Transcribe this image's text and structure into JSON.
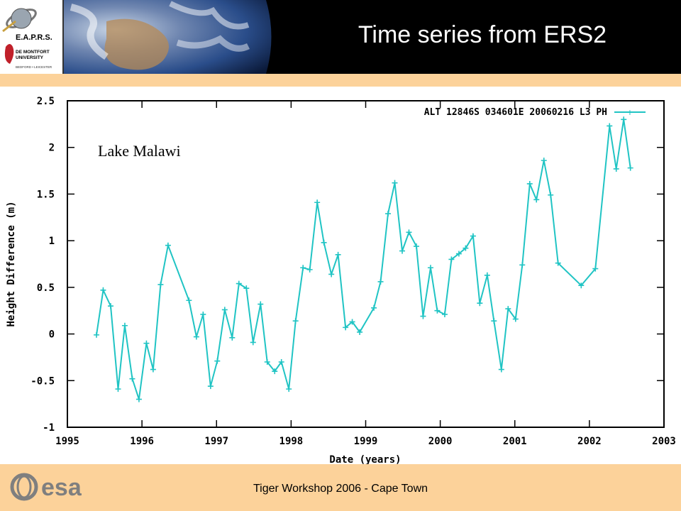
{
  "header": {
    "title": "Time series from ERS2",
    "logo_text": "E.A.P.R.S.",
    "university_text": "DE MONTFORT UNIVERSITY",
    "university_sub": "BEDFORD • LEICESTER"
  },
  "footer": {
    "text": "Tiger Workshop 2006 - Cape Town",
    "esa_logo_text": "esa"
  },
  "colors": {
    "header_bg": "#000000",
    "band": "#fcd29a",
    "series": "#20c4c4",
    "axis": "#000000"
  },
  "chart_data": {
    "type": "line",
    "annotation": "Lake Malawi",
    "xlabel": "Date (years)",
    "ylabel": "Height Difference (m)",
    "xlim": [
      1995,
      2003
    ],
    "ylim": [
      -1,
      2.5
    ],
    "x_ticks": [
      "1995",
      "1996",
      "1997",
      "1998",
      "1999",
      "2000",
      "2001",
      "2002",
      "2003"
    ],
    "y_ticks": [
      "2.5",
      "2",
      "1.5",
      "1",
      "0.5",
      "0",
      "-0.5",
      "-1"
    ],
    "grid": false,
    "legend_position": "top-right",
    "series": [
      {
        "name": "ALT 12846S 034601E 20060216 L3 PH",
        "x": [
          1995.39,
          1995.48,
          1995.58,
          1995.68,
          1995.77,
          1995.87,
          1995.96,
          1996.06,
          1996.15,
          1996.25,
          1996.35,
          1996.63,
          1996.73,
          1996.82,
          1996.92,
          1997.01,
          1997.11,
          1997.21,
          1997.3,
          1997.4,
          1997.49,
          1997.59,
          1997.68,
          1997.78,
          1997.87,
          1997.97,
          1998.06,
          1998.16,
          1998.25,
          1998.35,
          1998.44,
          1998.54,
          1998.63,
          1998.73,
          1998.82,
          1998.92,
          1999.11,
          1999.2,
          1999.3,
          1999.39,
          1999.49,
          1999.58,
          1999.68,
          1999.77,
          1999.87,
          1999.96,
          2000.06,
          2000.15,
          2000.25,
          2000.34,
          2000.44,
          2000.53,
          2000.63,
          2000.72,
          2000.82,
          2000.91,
          2001.01,
          2001.1,
          2001.2,
          2001.29,
          2001.39,
          2001.48,
          2001.58,
          2001.89,
          2002.08,
          2002.27,
          2002.36,
          2002.46,
          2002.55
        ],
        "values": [
          -0.01,
          0.47,
          0.3,
          -0.59,
          0.09,
          -0.48,
          -0.7,
          -0.1,
          -0.38,
          0.53,
          0.95,
          0.36,
          -0.03,
          0.21,
          -0.56,
          -0.29,
          0.26,
          -0.04,
          0.54,
          0.49,
          -0.09,
          0.32,
          -0.3,
          -0.4,
          -0.3,
          -0.59,
          0.14,
          0.71,
          0.69,
          1.41,
          0.98,
          0.64,
          0.85,
          0.07,
          0.13,
          0.02,
          0.28,
          0.56,
          1.29,
          1.62,
          0.89,
          1.09,
          0.94,
          0.19,
          0.71,
          0.25,
          0.21,
          0.8,
          0.86,
          0.92,
          1.05,
          0.33,
          0.63,
          0.14,
          -0.38,
          0.27,
          0.16,
          0.74,
          1.61,
          1.44,
          1.86,
          1.49,
          0.76,
          0.52,
          0.7,
          2.23,
          1.77,
          2.3,
          1.78
        ]
      }
    ]
  }
}
